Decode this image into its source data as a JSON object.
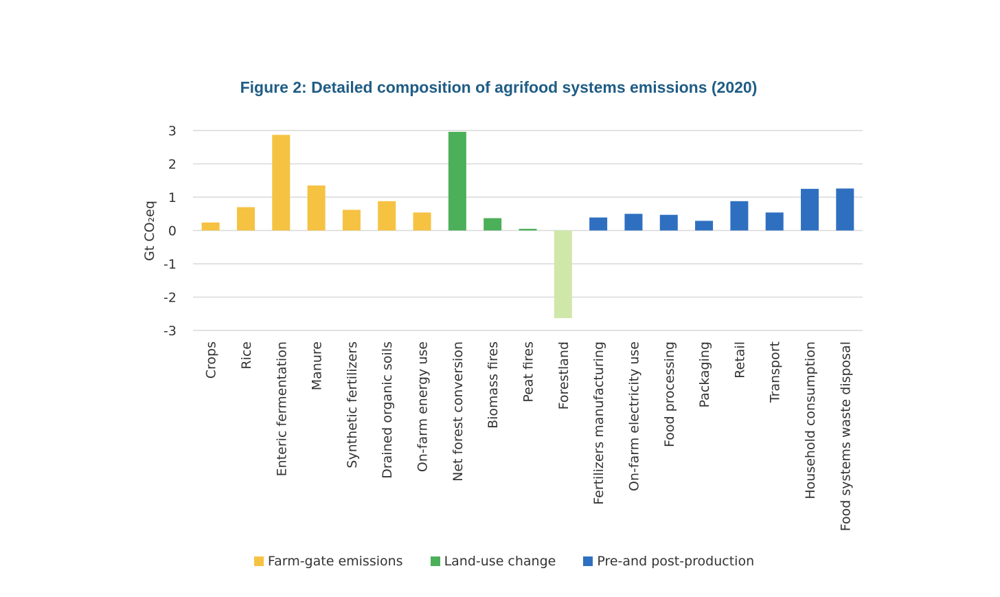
{
  "chart_data": {
    "type": "bar",
    "title": "Figure 2: Detailed composition of agrifood systems emissions (2020)",
    "ylabel": "Gt CO₂eq",
    "xlabel": "",
    "ylim": [
      -3,
      3
    ],
    "yticks": [
      "3",
      "2",
      "1",
      "0",
      "-1",
      "-2",
      "-3"
    ],
    "ytick_values": [
      3,
      2,
      1,
      0,
      -1,
      -2,
      -3
    ],
    "grid": true,
    "legend_placement": "bottom",
    "categories": [
      "Crops",
      "Rice",
      "Enteric fermentation",
      "Manure",
      "Synthetic fertilizers",
      "Drained organic soils",
      "On-farm energy use",
      "Net forest conversion",
      "Biomass fires",
      "Peat fires",
      "Forestland",
      "Fertilizers manufacturing",
      "On-farm electricity use",
      "Food processing",
      "Packaging",
      "Retail",
      "Transport",
      "Household consumption",
      "Food systems waste disposal"
    ],
    "values": [
      0.24,
      0.7,
      2.87,
      1.35,
      0.62,
      0.88,
      0.54,
      2.96,
      0.37,
      0.05,
      -2.63,
      0.39,
      0.5,
      0.47,
      0.29,
      0.88,
      0.54,
      1.25,
      1.26
    ],
    "bar_groups": [
      "farm",
      "farm",
      "farm",
      "farm",
      "farm",
      "farm",
      "farm",
      "land",
      "land",
      "land",
      "forest",
      "pre",
      "pre",
      "pre",
      "pre",
      "pre",
      "pre",
      "pre",
      "pre"
    ],
    "series": [
      {
        "name": "Farm-gate emissions",
        "color": "#f5c242"
      },
      {
        "name": "Land-use change",
        "color": "#4caf5a"
      },
      {
        "name": "Pre-and post-production",
        "color": "#2f6fc0"
      }
    ],
    "colors": {
      "farm": "#f5c242",
      "land": "#4caf5a",
      "forest": "#cfe8a9",
      "pre": "#2f6fc0",
      "grid": "#d9d9d9",
      "title": "#1f5c85"
    }
  }
}
